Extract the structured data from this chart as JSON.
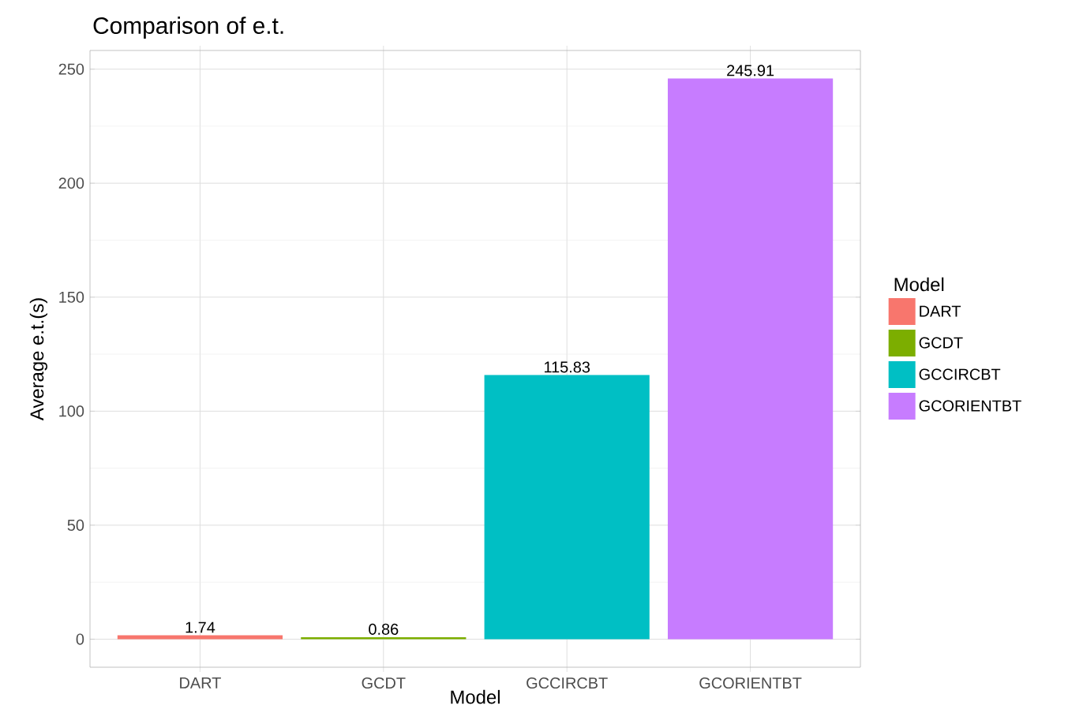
{
  "chart_data": {
    "type": "bar",
    "title": "Comparison of e.t.",
    "xlabel": "Model",
    "ylabel": "Average e.t.(s)",
    "legend_title": "Model",
    "categories": [
      "DART",
      "GCDT",
      "GCCIRCBT",
      "GCORIENTBT"
    ],
    "series": [
      {
        "name": "DART",
        "color": "#f8766d",
        "values": [
          1.74,
          null,
          null,
          null
        ]
      },
      {
        "name": "GCDT",
        "color": "#7cae00",
        "values": [
          null,
          0.86,
          null,
          null
        ]
      },
      {
        "name": "GCCIRCBT",
        "color": "#00bfc4",
        "values": [
          null,
          null,
          115.83,
          null
        ]
      },
      {
        "name": "GCORIENTBT",
        "color": "#c77cff",
        "values": [
          null,
          null,
          null,
          245.91
        ]
      }
    ],
    "ylim": [
      -12.3,
      258.2
    ],
    "yticks": [
      0,
      50,
      100,
      150,
      200,
      250
    ],
    "grid": true,
    "legend": "right",
    "data_labels": true
  }
}
